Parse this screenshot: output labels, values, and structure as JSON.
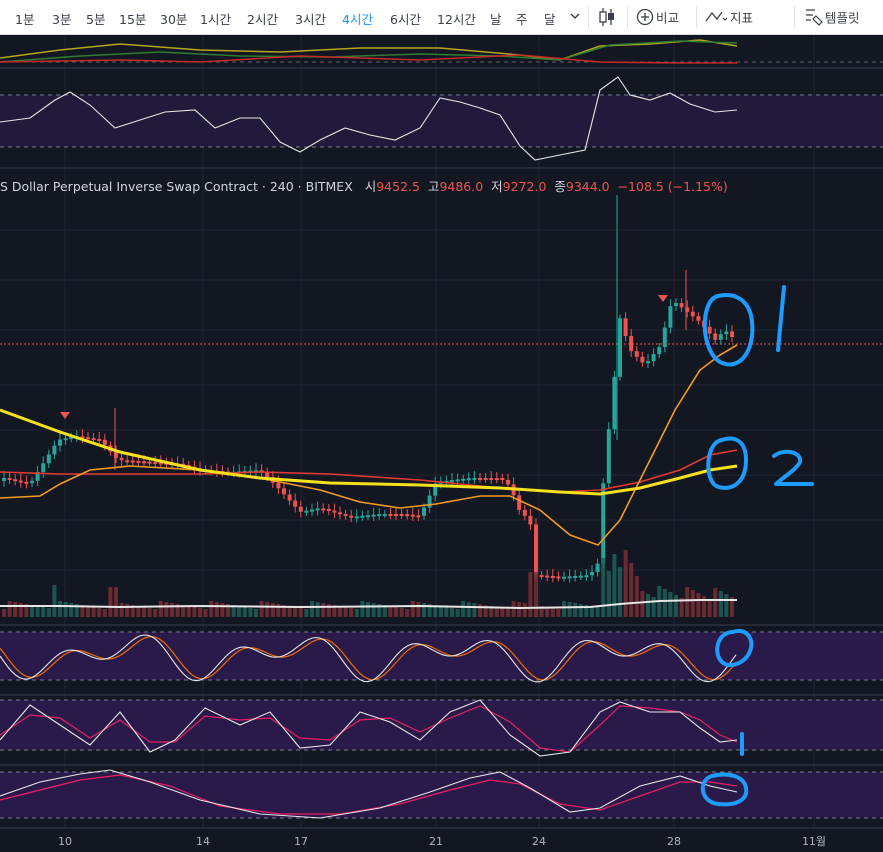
{
  "toolbar": {
    "timeframes": [
      "1분",
      "3분",
      "5분",
      "15분",
      "30분",
      "1시간",
      "2시간",
      "3시간",
      "4시간",
      "6시간",
      "12시간",
      "날",
      "주",
      "달"
    ],
    "active_timeframe": "4시간",
    "compare_label": "비교",
    "indicators_label": "지표",
    "templates_label": "템플릿"
  },
  "legend": {
    "symbol": "S Dollar Perpetual Inverse Swap Contract",
    "interval": "240",
    "exchange": "BITMEX",
    "open_label": "시",
    "open": "9452.5",
    "high_label": "고",
    "high": "9486.0",
    "low_label": "저",
    "low": "9272.0",
    "close_label": "종",
    "close": "9344.0",
    "change": "−108.5 (−1.15%)"
  },
  "x_axis": {
    "ticks": [
      {
        "label": "10",
        "x": 65
      },
      {
        "label": "14",
        "x": 203
      },
      {
        "label": "17",
        "x": 301
      },
      {
        "label": "21",
        "x": 436
      },
      {
        "label": "24",
        "x": 539
      },
      {
        "label": "28",
        "x": 674
      },
      {
        "label": "11월",
        "x": 814
      }
    ]
  },
  "annotations": [
    "1",
    "2"
  ],
  "colors": {
    "background": "#131722",
    "up": "#26a69a",
    "down": "#ef5350",
    "ma_yellow": "#f5e11c",
    "ma_orange": "#f39c1f",
    "ma_red": "#e53935",
    "osc_band": "#2a1a4a",
    "annotation": "#1e9bff",
    "accent": "#2196f3"
  }
}
